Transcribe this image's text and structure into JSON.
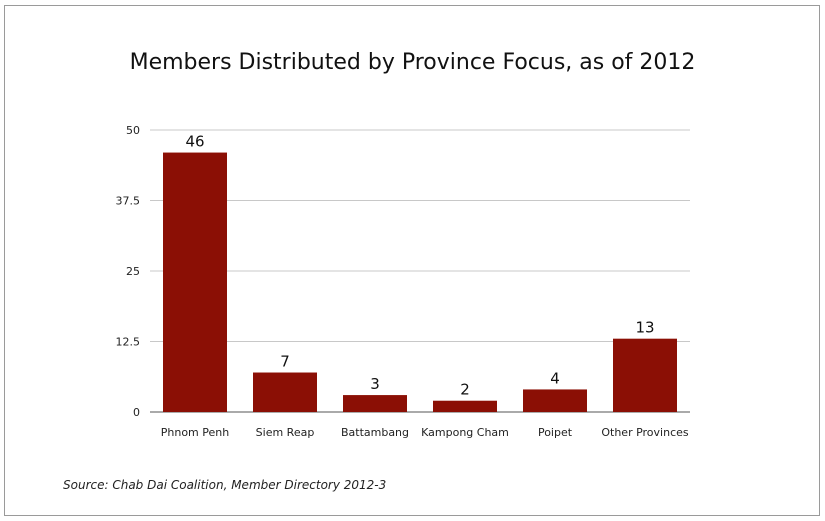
{
  "title": "Members Distributed by Province Focus, as of 2012",
  "source": "Source: Chab Dai Coalition, Member Directory 2012-3",
  "colors": {
    "bar": "#8b0f05",
    "grid": "#c8c8c8",
    "axis": "#555555"
  },
  "chart_data": {
    "type": "bar",
    "categories": [
      "Phnom Penh",
      "Siem Reap",
      "Battambang",
      "Kampong Cham",
      "Poipet",
      "Other Provinces"
    ],
    "values": [
      46,
      7,
      3,
      2,
      4,
      13
    ],
    "data_labels": [
      "46",
      "7",
      "3",
      "2",
      "4",
      "13"
    ],
    "ylim": [
      0,
      50
    ],
    "yticks": [
      0,
      12.5,
      25,
      37.5,
      50
    ],
    "ytick_labels": [
      "0",
      "12.5",
      "25",
      "37.5",
      "50"
    ],
    "grid": true,
    "xlabel": "",
    "ylabel": ""
  }
}
